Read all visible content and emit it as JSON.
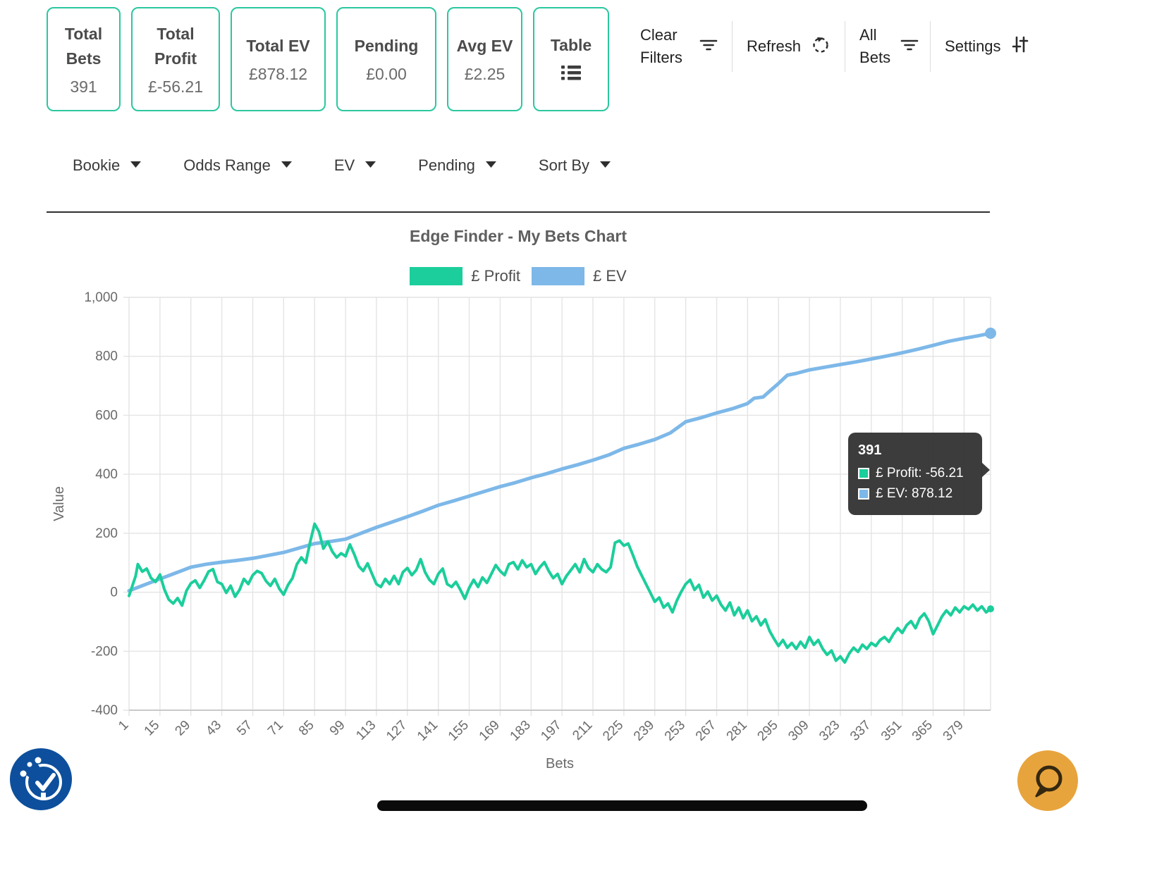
{
  "accent_color": "#2bc7a0",
  "stats_cards": [
    {
      "label": "Total Bets",
      "value": "391"
    },
    {
      "label": "Total Profit",
      "value": "£-56.21"
    },
    {
      "label": "Total EV",
      "value": "£878.12"
    },
    {
      "label": "Pending",
      "value": "£0.00"
    },
    {
      "label": "Avg EV",
      "value": "£2.25"
    },
    {
      "label": "Table",
      "value": ""
    }
  ],
  "actions": {
    "clear_filters": "Clear Filters",
    "refresh": "Refresh",
    "all_bets": "All Bets",
    "settings": "Settings"
  },
  "filters": [
    {
      "label": "Bookie"
    },
    {
      "label": "Odds Range"
    },
    {
      "label": "EV"
    },
    {
      "label": "Pending"
    },
    {
      "label": "Sort By"
    }
  ],
  "tooltip": {
    "title": "391",
    "rows": [
      {
        "label": "£ Profit: -56.21",
        "color": "#1bce9b"
      },
      {
        "label": "£ EV: 878.12",
        "color": "#7db8e8"
      }
    ]
  },
  "chart_data": {
    "type": "line",
    "title": "Edge Finder - My Bets Chart",
    "xlabel": "Bets",
    "ylabel": "Value",
    "xlim": [
      1,
      391
    ],
    "ylim": [
      -400,
      1000
    ],
    "grid": true,
    "legend_position": "top",
    "x_ticks": [
      1,
      15,
      29,
      43,
      57,
      71,
      85,
      99,
      113,
      127,
      141,
      155,
      169,
      183,
      197,
      211,
      225,
      239,
      253,
      267,
      281,
      295,
      309,
      323,
      337,
      351,
      365,
      379
    ],
    "y_ticks": [
      -400,
      -200,
      0,
      200,
      400,
      600,
      800,
      1000
    ],
    "y_tick_labels": [
      "-400",
      "-200",
      "0",
      "200",
      "400",
      "600",
      "800",
      "1,000"
    ],
    "legend": [
      {
        "name": "£ Profit",
        "color": "#1bce9b"
      },
      {
        "name": "£ EV",
        "color": "#7db8e8"
      }
    ],
    "series": [
      {
        "name": "£ EV",
        "color": "#7db8e8",
        "width": 5,
        "dot_r": 8,
        "points": [
          [
            1,
            5
          ],
          [
            8,
            25
          ],
          [
            15,
            45
          ],
          [
            22,
            65
          ],
          [
            29,
            85
          ],
          [
            36,
            95
          ],
          [
            43,
            102
          ],
          [
            50,
            108
          ],
          [
            57,
            115
          ],
          [
            64,
            125
          ],
          [
            71,
            135
          ],
          [
            78,
            150
          ],
          [
            85,
            165
          ],
          [
            92,
            172
          ],
          [
            99,
            180
          ],
          [
            106,
            200
          ],
          [
            113,
            220
          ],
          [
            120,
            238
          ],
          [
            127,
            256
          ],
          [
            134,
            275
          ],
          [
            141,
            295
          ],
          [
            148,
            310
          ],
          [
            155,
            326
          ],
          [
            162,
            342
          ],
          [
            169,
            358
          ],
          [
            176,
            372
          ],
          [
            183,
            388
          ],
          [
            190,
            402
          ],
          [
            197,
            418
          ],
          [
            204,
            432
          ],
          [
            211,
            448
          ],
          [
            218,
            465
          ],
          [
            225,
            488
          ],
          [
            232,
            502
          ],
          [
            239,
            518
          ],
          [
            246,
            540
          ],
          [
            253,
            578
          ],
          [
            260,
            592
          ],
          [
            267,
            608
          ],
          [
            274,
            622
          ],
          [
            281,
            640
          ],
          [
            284,
            658
          ],
          [
            288,
            662
          ],
          [
            291,
            682
          ],
          [
            295,
            708
          ],
          [
            299,
            736
          ],
          [
            303,
            742
          ],
          [
            309,
            754
          ],
          [
            316,
            763
          ],
          [
            323,
            772
          ],
          [
            330,
            781
          ],
          [
            337,
            791
          ],
          [
            344,
            801
          ],
          [
            351,
            812
          ],
          [
            358,
            824
          ],
          [
            365,
            837
          ],
          [
            372,
            851
          ],
          [
            379,
            861
          ],
          [
            385,
            869
          ],
          [
            391,
            878.12
          ]
        ]
      },
      {
        "name": "£ Profit",
        "color": "#1bce9b",
        "width": 4,
        "dot_r": 5,
        "points": [
          [
            1,
            -12
          ],
          [
            2,
            10
          ],
          [
            4,
            55
          ],
          [
            5,
            95
          ],
          [
            7,
            70
          ],
          [
            9,
            80
          ],
          [
            11,
            48
          ],
          [
            13,
            35
          ],
          [
            15,
            60
          ],
          [
            17,
            10
          ],
          [
            19,
            -25
          ],
          [
            21,
            -38
          ],
          [
            23,
            -20
          ],
          [
            25,
            -45
          ],
          [
            27,
            5
          ],
          [
            29,
            30
          ],
          [
            31,
            40
          ],
          [
            33,
            15
          ],
          [
            35,
            40
          ],
          [
            37,
            70
          ],
          [
            39,
            78
          ],
          [
            41,
            35
          ],
          [
            43,
            28
          ],
          [
            45,
            -2
          ],
          [
            47,
            22
          ],
          [
            49,
            -15
          ],
          [
            51,
            8
          ],
          [
            53,
            45
          ],
          [
            55,
            28
          ],
          [
            57,
            58
          ],
          [
            59,
            72
          ],
          [
            61,
            65
          ],
          [
            63,
            38
          ],
          [
            65,
            22
          ],
          [
            67,
            45
          ],
          [
            69,
            12
          ],
          [
            71,
            -8
          ],
          [
            73,
            25
          ],
          [
            75,
            48
          ],
          [
            77,
            95
          ],
          [
            79,
            118
          ],
          [
            81,
            100
          ],
          [
            83,
            170
          ],
          [
            85,
            232
          ],
          [
            87,
            205
          ],
          [
            89,
            148
          ],
          [
            91,
            172
          ],
          [
            93,
            138
          ],
          [
            95,
            118
          ],
          [
            97,
            132
          ],
          [
            99,
            122
          ],
          [
            101,
            162
          ],
          [
            103,
            128
          ],
          [
            105,
            88
          ],
          [
            107,
            72
          ],
          [
            109,
            98
          ],
          [
            111,
            62
          ],
          [
            113,
            28
          ],
          [
            115,
            18
          ],
          [
            117,
            45
          ],
          [
            119,
            28
          ],
          [
            121,
            55
          ],
          [
            123,
            28
          ],
          [
            125,
            68
          ],
          [
            127,
            82
          ],
          [
            129,
            58
          ],
          [
            131,
            75
          ],
          [
            133,
            112
          ],
          [
            135,
            68
          ],
          [
            137,
            42
          ],
          [
            139,
            28
          ],
          [
            141,
            62
          ],
          [
            143,
            80
          ],
          [
            145,
            28
          ],
          [
            147,
            18
          ],
          [
            149,
            35
          ],
          [
            151,
            8
          ],
          [
            153,
            -22
          ],
          [
            155,
            15
          ],
          [
            157,
            42
          ],
          [
            159,
            18
          ],
          [
            161,
            50
          ],
          [
            163,
            32
          ],
          [
            165,
            62
          ],
          [
            167,
            92
          ],
          [
            169,
            72
          ],
          [
            171,
            58
          ],
          [
            173,
            95
          ],
          [
            175,
            102
          ],
          [
            177,
            78
          ],
          [
            179,
            108
          ],
          [
            181,
            85
          ],
          [
            183,
            95
          ],
          [
            185,
            62
          ],
          [
            187,
            85
          ],
          [
            189,
            102
          ],
          [
            191,
            72
          ],
          [
            193,
            48
          ],
          [
            195,
            62
          ],
          [
            197,
            28
          ],
          [
            199,
            55
          ],
          [
            201,
            75
          ],
          [
            203,
            95
          ],
          [
            205,
            68
          ],
          [
            207,
            112
          ],
          [
            209,
            82
          ],
          [
            211,
            68
          ],
          [
            213,
            95
          ],
          [
            215,
            78
          ],
          [
            217,
            68
          ],
          [
            219,
            85
          ],
          [
            221,
            168
          ],
          [
            223,
            175
          ],
          [
            225,
            158
          ],
          [
            227,
            165
          ],
          [
            229,
            128
          ],
          [
            231,
            88
          ],
          [
            233,
            58
          ],
          [
            235,
            28
          ],
          [
            237,
            -2
          ],
          [
            239,
            -32
          ],
          [
            241,
            -18
          ],
          [
            243,
            -52
          ],
          [
            245,
            -38
          ],
          [
            247,
            -68
          ],
          [
            249,
            -28
          ],
          [
            251,
            2
          ],
          [
            253,
            28
          ],
          [
            255,
            42
          ],
          [
            257,
            8
          ],
          [
            259,
            25
          ],
          [
            261,
            -18
          ],
          [
            263,
            2
          ],
          [
            265,
            -28
          ],
          [
            267,
            -12
          ],
          [
            269,
            -42
          ],
          [
            271,
            -62
          ],
          [
            273,
            -35
          ],
          [
            275,
            -78
          ],
          [
            277,
            -52
          ],
          [
            279,
            -88
          ],
          [
            281,
            -62
          ],
          [
            283,
            -98
          ],
          [
            285,
            -82
          ],
          [
            287,
            -112
          ],
          [
            289,
            -92
          ],
          [
            291,
            -132
          ],
          [
            293,
            -158
          ],
          [
            295,
            -182
          ],
          [
            297,
            -162
          ],
          [
            299,
            -188
          ],
          [
            301,
            -172
          ],
          [
            303,
            -192
          ],
          [
            305,
            -168
          ],
          [
            307,
            -188
          ],
          [
            309,
            -152
          ],
          [
            311,
            -178
          ],
          [
            313,
            -162
          ],
          [
            315,
            -192
          ],
          [
            317,
            -212
          ],
          [
            319,
            -198
          ],
          [
            321,
            -232
          ],
          [
            323,
            -218
          ],
          [
            325,
            -238
          ],
          [
            327,
            -208
          ],
          [
            329,
            -188
          ],
          [
            331,
            -202
          ],
          [
            333,
            -178
          ],
          [
            335,
            -192
          ],
          [
            337,
            -172
          ],
          [
            339,
            -182
          ],
          [
            341,
            -162
          ],
          [
            343,
            -152
          ],
          [
            345,
            -168
          ],
          [
            347,
            -142
          ],
          [
            349,
            -122
          ],
          [
            351,
            -138
          ],
          [
            353,
            -112
          ],
          [
            355,
            -98
          ],
          [
            357,
            -122
          ],
          [
            359,
            -88
          ],
          [
            361,
            -72
          ],
          [
            363,
            -98
          ],
          [
            365,
            -142
          ],
          [
            367,
            -112
          ],
          [
            369,
            -82
          ],
          [
            371,
            -62
          ],
          [
            373,
            -78
          ],
          [
            375,
            -52
          ],
          [
            377,
            -68
          ],
          [
            379,
            -48
          ],
          [
            381,
            -58
          ],
          [
            383,
            -42
          ],
          [
            385,
            -62
          ],
          [
            387,
            -48
          ],
          [
            389,
            -68
          ],
          [
            391,
            -56.21
          ]
        ]
      }
    ]
  }
}
